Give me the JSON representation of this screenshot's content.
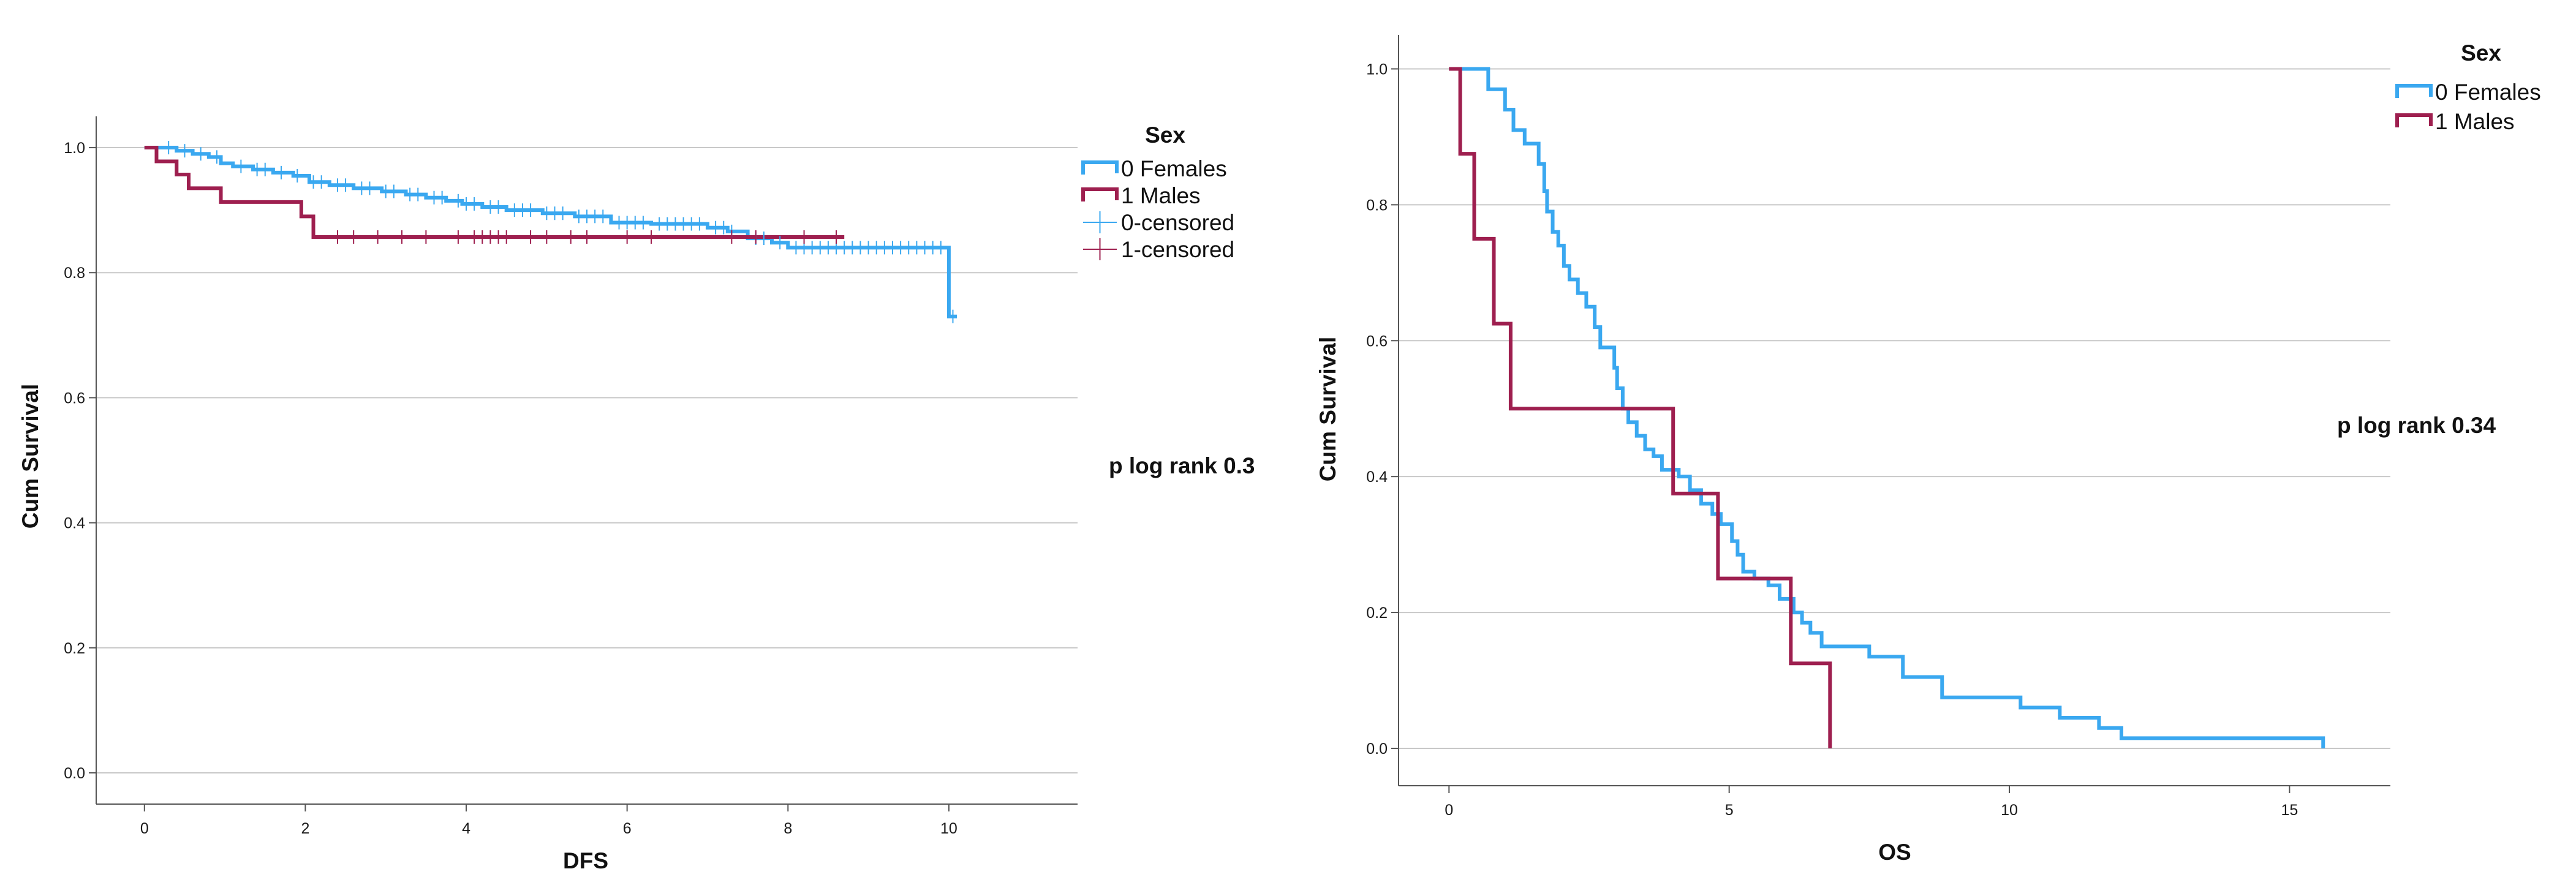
{
  "chart_data": [
    {
      "type": "line",
      "subtype": "kaplan-meier",
      "title": "",
      "xlabel": "DFS",
      "ylabel": "Cum Survival",
      "xlim": [
        -0.6,
        11.6
      ],
      "ylim": [
        -0.05,
        1.05
      ],
      "xticks": [
        0,
        2,
        4,
        6,
        8,
        10
      ],
      "yticks": [
        0.0,
        0.2,
        0.4,
        0.6,
        0.8,
        1.0
      ],
      "ytick_labels": [
        "0.0",
        "0.2",
        "0.4",
        "0.6",
        "0.8",
        "1.0"
      ],
      "grid": "horizontal",
      "legend": {
        "title": "Sex",
        "placement": "right",
        "entries": [
          {
            "label": "0 Females",
            "kind": "line",
            "color": "#3aa8f0"
          },
          {
            "label": "1 Males",
            "kind": "line",
            "color": "#9e1f4f"
          },
          {
            "label": "0-censored",
            "kind": "censor",
            "color": "#3aa8f0"
          },
          {
            "label": "1-censored",
            "kind": "censor",
            "color": "#9e1f4f"
          }
        ]
      },
      "annotation": "p log rank 0.3",
      "series": [
        {
          "name": "0 Females",
          "color": "#3aa8f0",
          "steps": [
            [
              0,
              1.0
            ],
            [
              0.4,
              0.995
            ],
            [
              0.6,
              0.99
            ],
            [
              0.8,
              0.985
            ],
            [
              0.95,
              0.975
            ],
            [
              1.1,
              0.97
            ],
            [
              1.35,
              0.965
            ],
            [
              1.6,
              0.96
            ],
            [
              1.85,
              0.955
            ],
            [
              2.05,
              0.945
            ],
            [
              2.3,
              0.94
            ],
            [
              2.6,
              0.935
            ],
            [
              2.95,
              0.93
            ],
            [
              3.25,
              0.925
            ],
            [
              3.5,
              0.92
            ],
            [
              3.75,
              0.915
            ],
            [
              3.95,
              0.91
            ],
            [
              4.2,
              0.905
            ],
            [
              4.5,
              0.9
            ],
            [
              4.95,
              0.895
            ],
            [
              5.35,
              0.89
            ],
            [
              5.8,
              0.88
            ],
            [
              6.3,
              0.878
            ],
            [
              7.0,
              0.872
            ],
            [
              7.25,
              0.866
            ],
            [
              7.5,
              0.855
            ],
            [
              7.8,
              0.848
            ],
            [
              8.0,
              0.84
            ],
            [
              10.0,
              0.73
            ]
          ],
          "end_x": 10.1,
          "censor_x": [
            0.3,
            0.5,
            0.7,
            0.9,
            1.2,
            1.4,
            1.5,
            1.7,
            1.9,
            2.1,
            2.2,
            2.4,
            2.5,
            2.7,
            2.8,
            3.0,
            3.1,
            3.3,
            3.4,
            3.6,
            3.7,
            3.9,
            4.0,
            4.1,
            4.3,
            4.4,
            4.6,
            4.7,
            4.8,
            5.0,
            5.1,
            5.2,
            5.4,
            5.5,
            5.6,
            5.7,
            5.9,
            6.0,
            6.1,
            6.2,
            6.4,
            6.5,
            6.6,
            6.7,
            6.8,
            6.9,
            7.1,
            7.2,
            7.3,
            7.6,
            7.7,
            7.9,
            8.1,
            8.2,
            8.3,
            8.4,
            8.5,
            8.6,
            8.7,
            8.8,
            8.9,
            9.0,
            9.1,
            9.2,
            9.3,
            9.4,
            9.5,
            9.6,
            9.7,
            9.8,
            9.9,
            10.05
          ]
        },
        {
          "name": "1 Males",
          "color": "#9e1f4f",
          "steps": [
            [
              0,
              1.0
            ],
            [
              0.15,
              0.978
            ],
            [
              0.4,
              0.957
            ],
            [
              0.55,
              0.935
            ],
            [
              0.95,
              0.913
            ],
            [
              1.95,
              0.89
            ],
            [
              2.1,
              0.857
            ]
          ],
          "end_x": 8.7,
          "censor_x": [
            2.4,
            2.6,
            2.9,
            3.2,
            3.5,
            3.9,
            4.1,
            4.2,
            4.3,
            4.4,
            4.5,
            4.8,
            5.0,
            5.3,
            5.5,
            6.0,
            6.3,
            7.3,
            7.6,
            8.2,
            8.6
          ]
        }
      ]
    },
    {
      "type": "line",
      "subtype": "kaplan-meier",
      "title": "",
      "xlabel": "OS",
      "ylabel": "Cum Survival",
      "xlim": [
        -0.9,
        16.8
      ],
      "ylim": [
        -0.055,
        1.05
      ],
      "xticks": [
        0,
        5,
        10,
        15
      ],
      "yticks": [
        0.0,
        0.2,
        0.4,
        0.6,
        0.8,
        1.0
      ],
      "ytick_labels": [
        "0.0",
        "0.2",
        "0.4",
        "0.6",
        "0.8",
        "1.0"
      ],
      "grid": "horizontal",
      "legend": {
        "title": "Sex",
        "placement": "top-right",
        "entries": [
          {
            "label": "0 Females",
            "kind": "line",
            "color": "#3aa8f0"
          },
          {
            "label": "1 Males",
            "kind": "line",
            "color": "#9e1f4f"
          }
        ]
      },
      "annotation": "p log rank 0.34",
      "series": [
        {
          "name": "0 Females",
          "color": "#3aa8f0",
          "steps": [
            [
              0,
              1.0
            ],
            [
              0.7,
              0.97
            ],
            [
              1.0,
              0.94
            ],
            [
              1.15,
              0.91
            ],
            [
              1.35,
              0.89
            ],
            [
              1.6,
              0.86
            ],
            [
              1.7,
              0.82
            ],
            [
              1.75,
              0.79
            ],
            [
              1.85,
              0.76
            ],
            [
              1.95,
              0.74
            ],
            [
              2.05,
              0.71
            ],
            [
              2.15,
              0.69
            ],
            [
              2.3,
              0.67
            ],
            [
              2.45,
              0.65
            ],
            [
              2.6,
              0.62
            ],
            [
              2.7,
              0.59
            ],
            [
              2.95,
              0.56
            ],
            [
              3.0,
              0.53
            ],
            [
              3.1,
              0.5
            ],
            [
              3.2,
              0.48
            ],
            [
              3.35,
              0.46
            ],
            [
              3.5,
              0.44
            ],
            [
              3.65,
              0.43
            ],
            [
              3.8,
              0.41
            ],
            [
              4.1,
              0.4
            ],
            [
              4.3,
              0.38
            ],
            [
              4.5,
              0.36
            ],
            [
              4.7,
              0.345
            ],
            [
              4.85,
              0.33
            ],
            [
              5.05,
              0.305
            ],
            [
              5.15,
              0.285
            ],
            [
              5.25,
              0.26
            ],
            [
              5.45,
              0.25
            ],
            [
              5.7,
              0.24
            ],
            [
              5.9,
              0.22
            ],
            [
              6.15,
              0.2
            ],
            [
              6.3,
              0.185
            ],
            [
              6.45,
              0.17
            ],
            [
              6.65,
              0.15
            ],
            [
              7.5,
              0.135
            ],
            [
              8.1,
              0.105
            ],
            [
              8.8,
              0.075
            ],
            [
              10.2,
              0.06
            ],
            [
              10.9,
              0.045
            ],
            [
              11.6,
              0.03
            ],
            [
              12.0,
              0.015
            ],
            [
              15.6,
              0.0
            ]
          ],
          "end_x": 15.6,
          "censor_x": []
        },
        {
          "name": "1 Males",
          "color": "#9e1f4f",
          "steps": [
            [
              0,
              1.0
            ],
            [
              0.2,
              0.875
            ],
            [
              0.45,
              0.75
            ],
            [
              0.8,
              0.625
            ],
            [
              1.1,
              0.5
            ],
            [
              4.0,
              0.375
            ],
            [
              4.8,
              0.25
            ],
            [
              6.1,
              0.125
            ],
            [
              6.8,
              0.0
            ]
          ],
          "end_x": 6.8,
          "censor_x": []
        }
      ]
    }
  ]
}
